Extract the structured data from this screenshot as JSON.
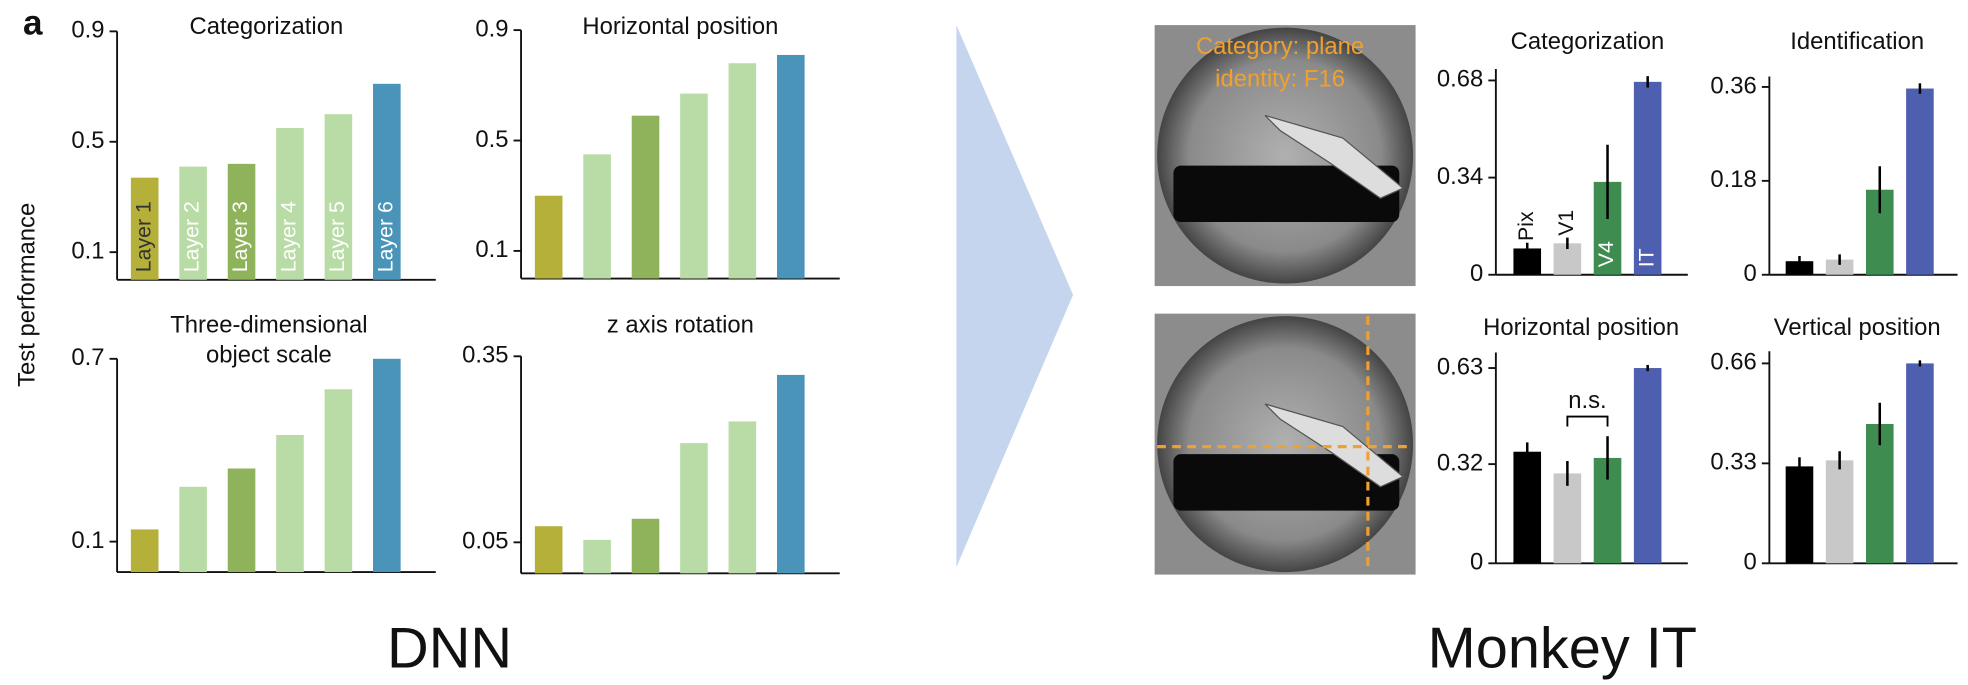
{
  "panel_label": "a",
  "shared_ylabel": "Test performance",
  "captions": [
    "DNN",
    "Monkey IT"
  ],
  "image_labels": [
    "Category: plane",
    "identity: F16"
  ],
  "chart_data": [
    {
      "type": "bar",
      "title": "Categorization",
      "categories": [
        "Layer 1",
        "Layer 2",
        "Layer 3",
        "Layer 4",
        "Layer 5",
        "Layer 6"
      ],
      "values": [
        0.37,
        0.41,
        0.42,
        0.55,
        0.6,
        0.71
      ],
      "colors": [
        "#b5b03a",
        "#b9dca6",
        "#8fb35a",
        "#b9dca6",
        "#b9dca6",
        "#4a93b9"
      ],
      "ylim": [
        0,
        0.9
      ],
      "yticks": [
        0.1,
        0.5,
        0.9
      ]
    },
    {
      "type": "bar",
      "title": "Horizontal position",
      "values": [
        0.3,
        0.45,
        0.59,
        0.67,
        0.78,
        0.81
      ],
      "colors": [
        "#b5b03a",
        "#b9dca6",
        "#8fb35a",
        "#b9dca6",
        "#b9dca6",
        "#4a93b9"
      ],
      "ylim": [
        0,
        0.9
      ],
      "yticks": [
        0.1,
        0.5,
        0.9
      ]
    },
    {
      "type": "bar",
      "title": [
        "Three-dimensional",
        "object scale"
      ],
      "values": [
        0.14,
        0.28,
        0.34,
        0.45,
        0.6,
        0.7
      ],
      "colors": [
        "#b5b03a",
        "#b9dca6",
        "#8fb35a",
        "#b9dca6",
        "#b9dca6",
        "#4a93b9"
      ],
      "ylim": [
        0,
        0.7
      ],
      "yticks": [
        0.1,
        0.7
      ]
    },
    {
      "type": "bar",
      "title": "z axis rotation",
      "values": [
        0.076,
        0.054,
        0.088,
        0.21,
        0.245,
        0.32
      ],
      "colors": [
        "#b5b03a",
        "#b9dca6",
        "#8fb35a",
        "#b9dca6",
        "#b9dca6",
        "#4a93b9"
      ],
      "ylim": [
        0,
        0.35
      ],
      "yticks": [
        0.05,
        0.35
      ]
    },
    {
      "type": "bar",
      "title": "Categorization",
      "categories": [
        "Pix",
        "V1",
        "V4",
        "IT"
      ],
      "values": [
        0.092,
        0.11,
        0.325,
        0.675
      ],
      "errors": [
        0.02,
        0.02,
        0.13,
        0.02
      ],
      "colors": [
        "#000000",
        "#c8c8c8",
        "#3e8c50",
        "#4e5fb0"
      ],
      "ylim": [
        0,
        0.72
      ],
      "yticks": [
        0,
        0.34,
        0.68
      ]
    },
    {
      "type": "bar",
      "title": "Identification",
      "values": [
        0.026,
        0.029,
        0.163,
        0.357
      ],
      "errors": [
        0.01,
        0.01,
        0.045,
        0.01
      ],
      "colors": [
        "#000000",
        "#c8c8c8",
        "#3e8c50",
        "#4e5fb0"
      ],
      "ylim": [
        0,
        0.38
      ],
      "yticks": [
        0,
        0.18,
        0.36
      ]
    },
    {
      "type": "bar",
      "title": "Horizontal position",
      "annotation": "n.s.",
      "values": [
        0.36,
        0.29,
        0.34,
        0.63
      ],
      "errors": [
        0.03,
        0.04,
        0.07,
        0.01
      ],
      "colors": [
        "#000000",
        "#c8c8c8",
        "#3e8c50",
        "#4e5fb0"
      ],
      "ylim": [
        0,
        0.68
      ],
      "yticks": [
        0,
        0.32,
        0.63
      ]
    },
    {
      "type": "bar",
      "title": "Vertical position",
      "values": [
        0.32,
        0.34,
        0.46,
        0.66
      ],
      "errors": [
        0.03,
        0.03,
        0.07,
        0.01
      ],
      "colors": [
        "#000000",
        "#c8c8c8",
        "#3e8c50",
        "#4e5fb0"
      ],
      "ylim": [
        0,
        0.7
      ],
      "yticks": [
        0,
        0.33,
        0.66
      ]
    }
  ]
}
